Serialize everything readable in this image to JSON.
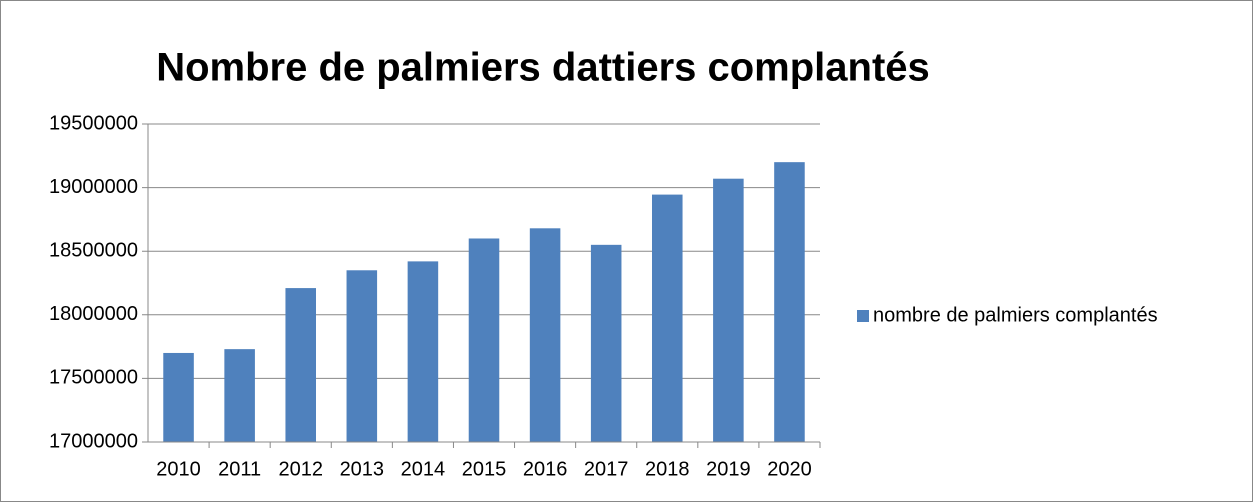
{
  "chart_data": {
    "type": "bar",
    "title": "Nombre de palmiers dattiers complantés",
    "categories": [
      "2010",
      "2011",
      "2012",
      "2013",
      "2014",
      "2015",
      "2016",
      "2017",
      "2018",
      "2019",
      "2020"
    ],
    "series": [
      {
        "name": "nombre de palmiers complantés",
        "color": "#4f81bd",
        "values": [
          17700000,
          17730000,
          18210000,
          18350000,
          18420000,
          18600000,
          18680000,
          18550000,
          18945000,
          19070000,
          19200000
        ]
      }
    ],
    "ylim": [
      17000000,
      19500000
    ],
    "yticks": [
      17000000,
      17500000,
      18000000,
      18500000,
      19000000,
      19500000
    ],
    "grid": true,
    "legend": "right"
  }
}
